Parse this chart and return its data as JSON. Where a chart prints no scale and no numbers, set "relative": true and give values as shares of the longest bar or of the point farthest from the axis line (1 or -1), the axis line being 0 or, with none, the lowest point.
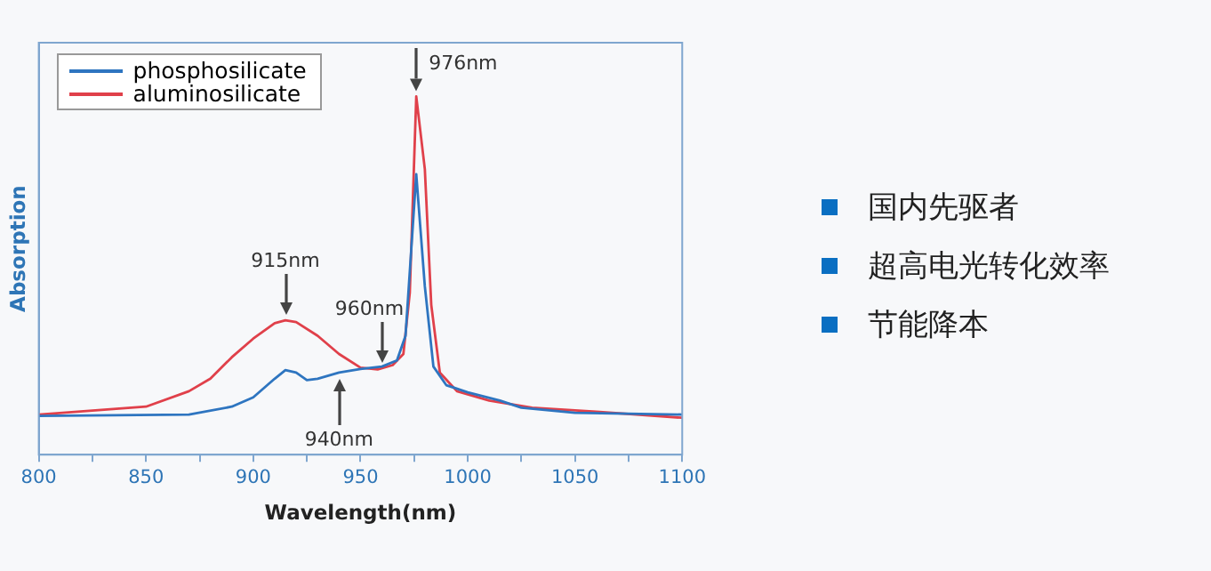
{
  "chart_data": [
    {
      "type": "line",
      "relative": true,
      "xlabel": "Wavelength(nm)",
      "ylabel": "Absorption",
      "xlim": [
        800,
        1100
      ],
      "xticks": [
        800,
        {
          "value": 825,
          "label": null
        },
        850,
        {
          "value": 875,
          "label": null
        },
        900,
        {
          "value": 925,
          "label": null
        },
        950,
        {
          "value": 975,
          "label": null
        },
        1000,
        {
          "value": 1025,
          "label": null
        },
        1050,
        {
          "value": 1075,
          "label": null
        },
        1100
      ],
      "grid": false,
      "legend": "top left",
      "marker": "none",
      "line_style": "solid",
      "series": [
        {
          "name": "phosphosilicate",
          "color": "#2e75c0",
          "x": [
            800,
            870,
            890,
            900,
            910,
            915,
            920,
            925,
            930,
            940,
            950,
            960,
            967,
            971,
            976,
            980,
            984,
            990,
            1000,
            1015,
            1025,
            1050,
            1100
          ],
          "values": [
            0.108,
            0.112,
            0.134,
            0.16,
            0.212,
            0.236,
            0.229,
            0.208,
            0.212,
            0.229,
            0.239,
            0.246,
            0.263,
            0.332,
            0.783,
            0.47,
            0.246,
            0.194,
            0.174,
            0.151,
            0.131,
            0.117,
            0.112
          ]
        },
        {
          "name": "aluminosilicate",
          "color": "#e0404a",
          "x": [
            800,
            850,
            870,
            880,
            890,
            900,
            910,
            915,
            920,
            930,
            940,
            950,
            958,
            965,
            970,
            973,
            976,
            980,
            983,
            987,
            995,
            1010,
            1030,
            1060,
            1100
          ],
          "values": [
            0.112,
            0.134,
            0.177,
            0.212,
            0.272,
            0.324,
            0.367,
            0.375,
            0.37,
            0.332,
            0.281,
            0.243,
            0.238,
            0.25,
            0.281,
            0.453,
            1,
            0.797,
            0.418,
            0.229,
            0.177,
            0.151,
            0.131,
            0.12,
            0.103
          ]
        }
      ],
      "annotations": [
        {
          "text": "976nm",
          "x": 976,
          "y": 1
        },
        {
          "text": "915nm",
          "x": 915,
          "y": 0.375
        },
        {
          "text": "960nm",
          "x": 960,
          "y": 0.24
        },
        {
          "text": "940nm",
          "x": 940,
          "y": 0.229
        }
      ]
    },
    {
      "type": "other",
      "annotations": [
        "国内先驱者",
        "超高电光转化效率",
        "节能降本"
      ]
    }
  ]
}
